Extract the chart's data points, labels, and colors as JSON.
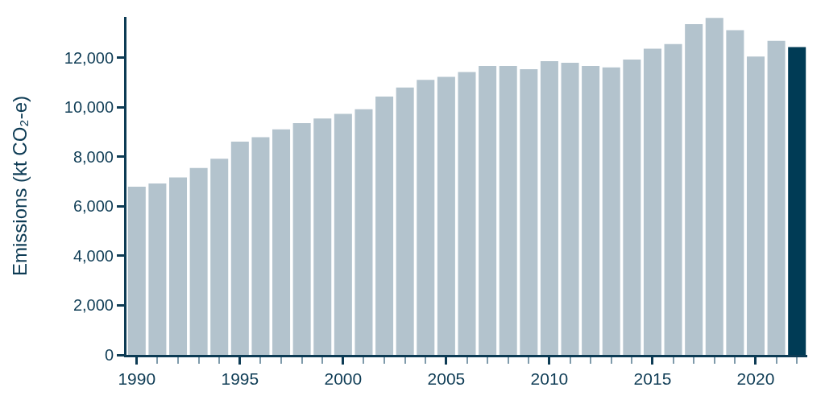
{
  "chart_data": {
    "type": "bar",
    "ylabel": "Emissions (kt CO₂-e)",
    "x": [
      1990,
      1991,
      1992,
      1993,
      1994,
      1995,
      1996,
      1997,
      1998,
      1999,
      2000,
      2001,
      2002,
      2003,
      2004,
      2005,
      2006,
      2007,
      2008,
      2009,
      2010,
      2011,
      2012,
      2013,
      2014,
      2015,
      2016,
      2017,
      2018,
      2019,
      2020,
      2021,
      2022
    ],
    "values": [
      6790,
      6920,
      7170,
      7550,
      7920,
      8610,
      8790,
      9110,
      9360,
      9550,
      9730,
      9920,
      10430,
      10800,
      11110,
      11230,
      11420,
      11670,
      11670,
      11540,
      11860,
      11800,
      11670,
      11610,
      11930,
      12370,
      12550,
      13360,
      13610,
      13110,
      12050,
      12680,
      12430
    ],
    "colors": [
      "#b3c3cd",
      "#b3c3cd",
      "#b3c3cd",
      "#b3c3cd",
      "#b3c3cd",
      "#b3c3cd",
      "#b3c3cd",
      "#b3c3cd",
      "#b3c3cd",
      "#b3c3cd",
      "#b3c3cd",
      "#b3c3cd",
      "#b3c3cd",
      "#b3c3cd",
      "#b3c3cd",
      "#b3c3cd",
      "#b3c3cd",
      "#b3c3cd",
      "#b3c3cd",
      "#b3c3cd",
      "#b3c3cd",
      "#b3c3cd",
      "#b3c3cd",
      "#b3c3cd",
      "#b3c3cd",
      "#b3c3cd",
      "#b3c3cd",
      "#b3c3cd",
      "#b3c3cd",
      "#b3c3cd",
      "#b3c3cd",
      "#b3c3cd",
      "#003b55"
    ],
    "xlim": [
      1989.5,
      2022.5
    ],
    "xticks": [
      1990,
      {
        "value": 1991,
        "label": null
      },
      {
        "value": 1992,
        "label": null
      },
      {
        "value": 1993,
        "label": null
      },
      {
        "value": 1994,
        "label": null
      },
      1995,
      {
        "value": 1996,
        "label": null
      },
      {
        "value": 1997,
        "label": null
      },
      {
        "value": 1998,
        "label": null
      },
      {
        "value": 1999,
        "label": null
      },
      2000,
      {
        "value": 2001,
        "label": null
      },
      {
        "value": 2002,
        "label": null
      },
      {
        "value": 2003,
        "label": null
      },
      {
        "value": 2004,
        "label": null
      },
      2005,
      {
        "value": 2006,
        "label": null
      },
      {
        "value": 2007,
        "label": null
      },
      {
        "value": 2008,
        "label": null
      },
      {
        "value": 2009,
        "label": null
      },
      2010,
      {
        "value": 2011,
        "label": null
      },
      {
        "value": 2012,
        "label": null
      },
      {
        "value": 2013,
        "label": null
      },
      {
        "value": 2014,
        "label": null
      },
      2015,
      {
        "value": 2016,
        "label": null
      },
      {
        "value": 2017,
        "label": null
      },
      {
        "value": 2018,
        "label": null
      },
      {
        "value": 2019,
        "label": null
      },
      2020,
      {
        "value": 2021,
        "label": null
      },
      {
        "value": 2022,
        "label": null
      }
    ],
    "ylim": [
      0,
      13650
    ],
    "yticks": [
      0,
      {
        "value": 2000,
        "label": "2,000"
      },
      {
        "value": 4000,
        "label": "4,000"
      },
      {
        "value": 6000,
        "label": "6,000"
      },
      {
        "value": 8000,
        "label": "8,000"
      },
      {
        "value": 10000,
        "label": "10,000"
      },
      {
        "value": 12000,
        "label": "12,000"
      }
    ]
  }
}
